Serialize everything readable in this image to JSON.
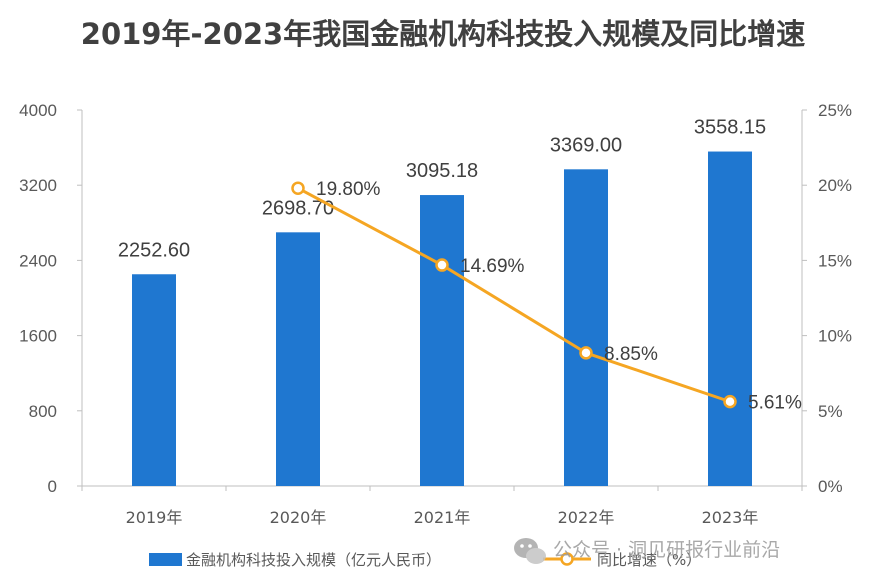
{
  "chart_data": {
    "type": "bar",
    "title": "2019年-2023年我国金融机构科技投入规模及同比增速",
    "categories": [
      "2019年",
      "2020年",
      "2021年",
      "2022年",
      "2023年"
    ],
    "series": [
      {
        "name": "金融机构科技投入规模（亿元人民币）",
        "type": "bar",
        "axis": "left",
        "values": [
          2252.6,
          2698.7,
          3095.18,
          3369.0,
          3558.15
        ],
        "labels": [
          "2252.60",
          "2698.70",
          "3095.18",
          "3369.00",
          "3558.15"
        ],
        "color": "#1f77d0"
      },
      {
        "name": "同比增速（%）",
        "type": "line",
        "axis": "right",
        "values": [
          null,
          19.8,
          14.69,
          8.85,
          5.61
        ],
        "labels": [
          "",
          "19.80%",
          "14.69%",
          "8.85%",
          "5.61%"
        ],
        "color": "#f5a623"
      }
    ],
    "y_left": {
      "ylim": [
        0,
        4000
      ],
      "ticks": [
        0,
        800,
        1600,
        2400,
        3200,
        4000
      ],
      "tick_labels": [
        "0",
        "800",
        "1600",
        "2400",
        "3200",
        "4000"
      ]
    },
    "y_right": {
      "ylim": [
        0,
        25
      ],
      "ticks": [
        0,
        5,
        10,
        15,
        20,
        25
      ],
      "tick_labels": [
        "0%",
        "5%",
        "10%",
        "15%",
        "20%",
        "25%"
      ]
    },
    "grid": false,
    "legend_position": "bottom"
  },
  "watermark": {
    "text": "公众号 · 洞见研报行业前沿",
    "icon": "wechat-icon"
  },
  "colors": {
    "axis": "#bfbfbf",
    "title": "#404040",
    "text": "#595959"
  }
}
